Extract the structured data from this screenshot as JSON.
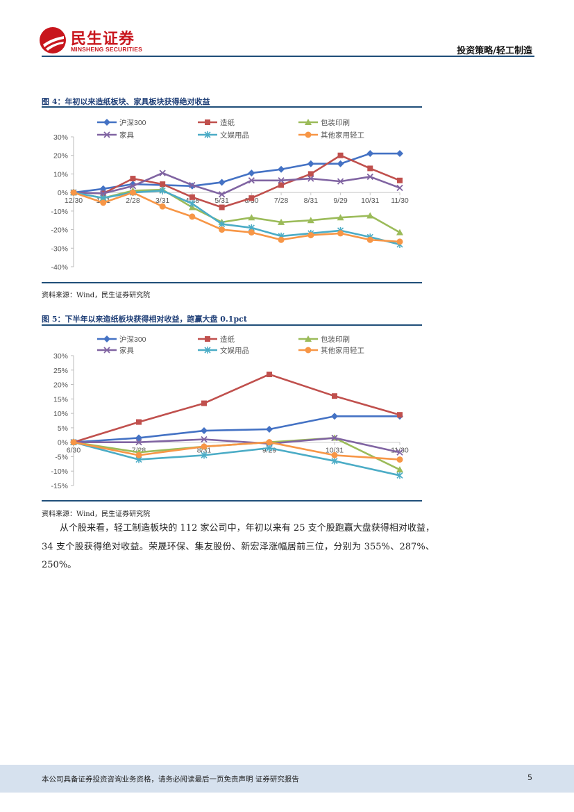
{
  "header": {
    "brand_cn": "民生证券",
    "brand_en": "MINSHENG SECURITIES",
    "section": "投资策略/轻工制造"
  },
  "figures": [
    {
      "title": "图 4：年初以来造纸板块、家具板块获得绝对收益",
      "source": "资料来源：Wind，民生证券研究院"
    },
    {
      "title": "图 5：下半年以来造纸板块获得相对收益，跑赢大盘 0.1pct",
      "source": "资料来源：Wind，民生证券研究院"
    }
  ],
  "body_paragraph": "从个股来看，轻工制造板块的 112 家公司中，年初以来有 25 支个股跑赢大盘获得相对收益，34 支个股获得绝对收益。荣晟环保、集友股份、新宏泽涨幅居前三位，分别为 355%、287%、250%。",
  "footer": {
    "disclaimer": "本公司具备证券投资咨询业务资格，请务必阅读最后一页免责声明 证券研究报告",
    "page_number": "5"
  },
  "chart_data": [
    {
      "type": "line",
      "title": "图 4：年初以来造纸板块、家具板块获得绝对收益",
      "categories": [
        "12/30",
        "1/31",
        "2/28",
        "3/31",
        "4/28",
        "5/31",
        "6/30",
        "7/28",
        "8/31",
        "9/29",
        "10/31",
        "11/30"
      ],
      "ylim": [
        -40,
        30
      ],
      "yticks": [
        "30%",
        "20%",
        "10%",
        "0%",
        "-10%",
        "-20%",
        "-30%",
        "-40%"
      ],
      "ytick_values": [
        30,
        20,
        10,
        0,
        -10,
        -20,
        -30,
        -40
      ],
      "legend_position": "top",
      "series": [
        {
          "name": "沪深300",
          "color": "#4472c4",
          "marker": "diamond",
          "values": [
            0,
            2,
            4.5,
            4,
            3.5,
            5.5,
            10.5,
            12.5,
            15.5,
            15.5,
            21,
            21
          ]
        },
        {
          "name": "造纸",
          "color": "#c0504d",
          "marker": "square",
          "values": [
            0,
            -0.5,
            7.5,
            4.5,
            -2.5,
            -8,
            -3,
            4,
            10,
            20,
            13,
            6.5
          ]
        },
        {
          "name": "包装印刷",
          "color": "#9bbb59",
          "marker": "triangle",
          "values": [
            0,
            -3,
            1,
            1.5,
            -8,
            -16,
            -13.5,
            -16,
            -15,
            -13.5,
            -12.5,
            -21.5
          ]
        },
        {
          "name": "家具",
          "color": "#8064a2",
          "marker": "x",
          "values": [
            0,
            -0.5,
            3.5,
            10.5,
            4,
            -1,
            6.5,
            6.5,
            7.5,
            6,
            8.5,
            2.5
          ]
        },
        {
          "name": "文娱用品",
          "color": "#4bacc6",
          "marker": "asterisk",
          "values": [
            0,
            -3,
            0,
            1,
            -6,
            -17,
            -19,
            -23.5,
            -22,
            -20.5,
            -24,
            -28
          ]
        },
        {
          "name": "其他家用轻工",
          "color": "#f79646",
          "marker": "circle",
          "values": [
            0,
            -5.5,
            0,
            -7.5,
            -13,
            -20,
            -21.5,
            -25.5,
            -23,
            -22,
            -25.5,
            -26.5
          ]
        }
      ]
    },
    {
      "type": "line",
      "title": "图 5：下半年以来造纸板块获得相对收益，跑赢大盘 0.1pct",
      "categories": [
        "6/30",
        "7/28",
        "8/31",
        "9/29",
        "10/31",
        "11/30"
      ],
      "ylim": [
        -15,
        30
      ],
      "yticks": [
        "30%",
        "25%",
        "20%",
        "15%",
        "10%",
        "5%",
        "0%",
        "-5%",
        "-10%",
        "-15%"
      ],
      "ytick_values": [
        30,
        25,
        20,
        15,
        10,
        5,
        0,
        -5,
        -10,
        -15
      ],
      "legend_position": "top",
      "series": [
        {
          "name": "沪深300",
          "color": "#4472c4",
          "marker": "diamond",
          "values": [
            0,
            1.5,
            4,
            4.5,
            9,
            9
          ]
        },
        {
          "name": "造纸",
          "color": "#c0504d",
          "marker": "square",
          "values": [
            0,
            7,
            13.5,
            23.5,
            16,
            9.5
          ]
        },
        {
          "name": "包装印刷",
          "color": "#9bbb59",
          "marker": "triangle",
          "values": [
            0,
            -3.5,
            -1.5,
            0,
            1.5,
            -9.5
          ]
        },
        {
          "name": "家具",
          "color": "#8064a2",
          "marker": "x",
          "values": [
            0,
            0,
            1,
            -0.5,
            1.5,
            -3.5
          ]
        },
        {
          "name": "文娱用品",
          "color": "#4bacc6",
          "marker": "asterisk",
          "values": [
            0,
            -6,
            -4.5,
            -2,
            -6.5,
            -11.5
          ]
        },
        {
          "name": "其他家用轻工",
          "color": "#f79646",
          "marker": "circle",
          "values": [
            0,
            -4.5,
            -1.5,
            0,
            -4.5,
            -6
          ]
        }
      ]
    }
  ]
}
